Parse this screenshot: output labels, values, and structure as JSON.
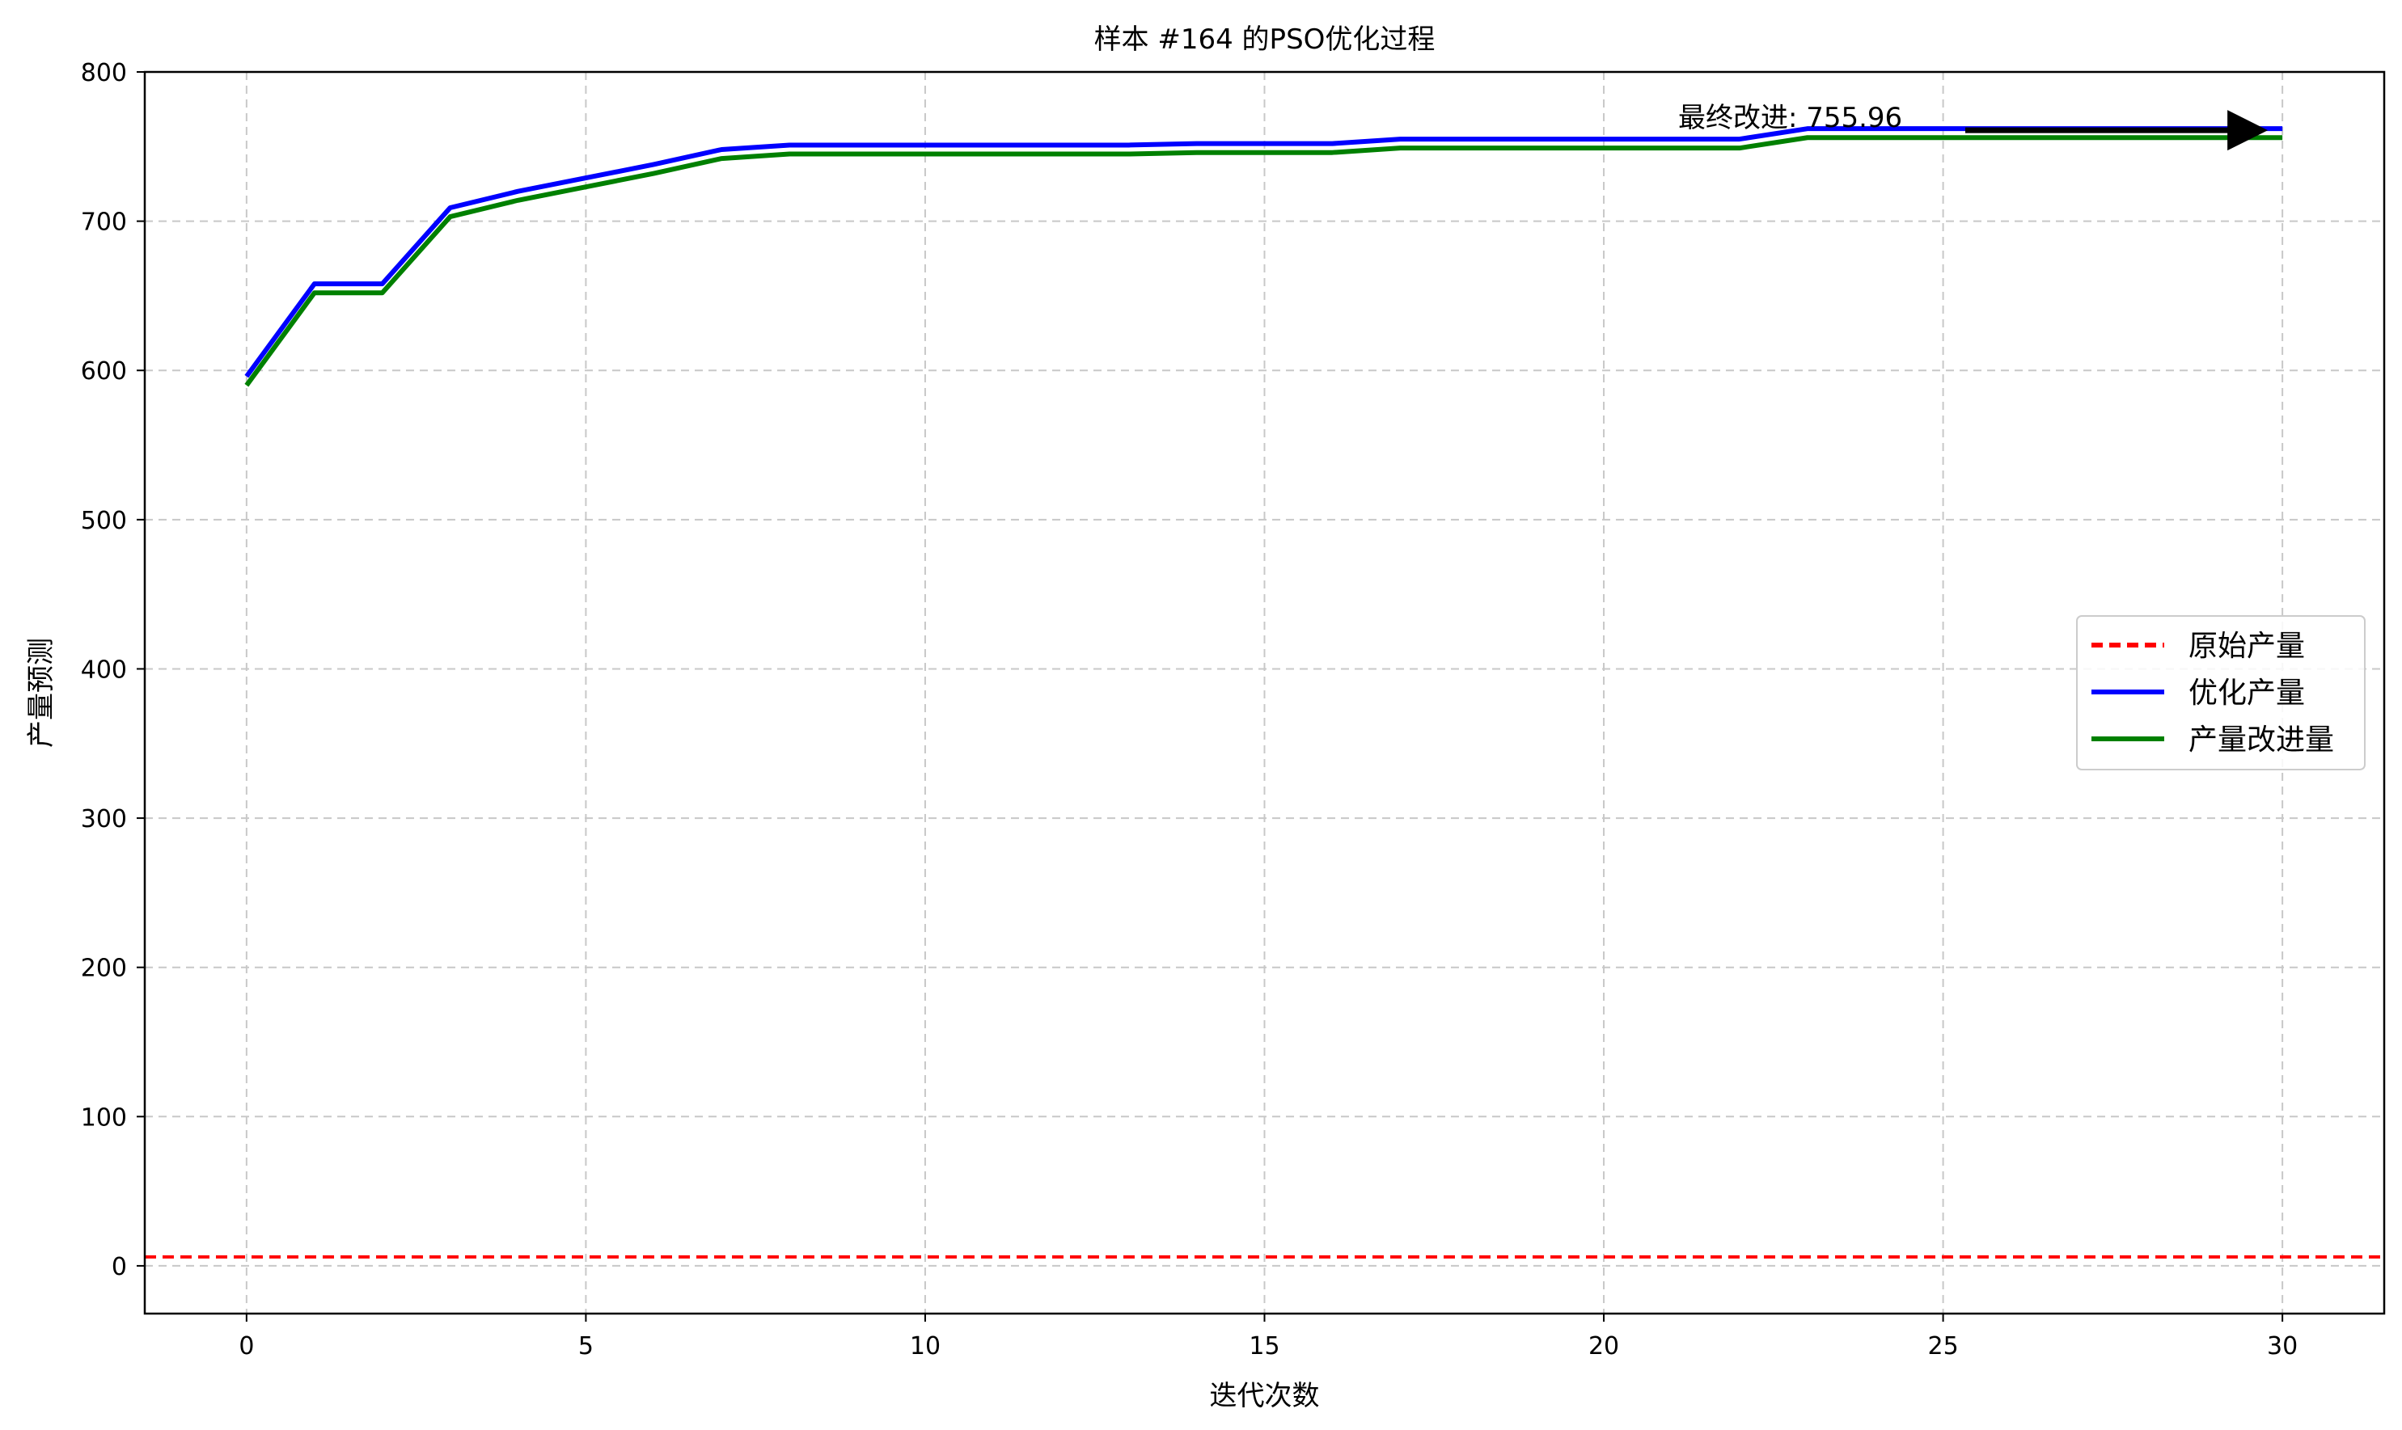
{
  "chart_data": {
    "type": "line",
    "title": "样本 #164 的PSO优化过程",
    "xlabel": "迭代次数",
    "ylabel": "产量预测",
    "xlim": [
      -1.5,
      31.5
    ],
    "ylim": [
      -32,
      800
    ],
    "xticks": [
      0,
      5,
      10,
      15,
      20,
      25,
      30
    ],
    "yticks": [
      0,
      100,
      200,
      300,
      400,
      500,
      600,
      700,
      800
    ],
    "grid": true,
    "legend_position": "center-right",
    "x": [
      0,
      1,
      2,
      3,
      4,
      5,
      6,
      7,
      8,
      9,
      10,
      11,
      12,
      13,
      14,
      15,
      16,
      17,
      18,
      19,
      20,
      21,
      22,
      23,
      24,
      25,
      26,
      27,
      28,
      29,
      30
    ],
    "hlines": [
      {
        "name": "原始产量",
        "value": 6.0,
        "color": "#ff0000",
        "style": "dashed"
      }
    ],
    "series": [
      {
        "name": "优化产量",
        "color": "#0000ff",
        "values": [
          596,
          658,
          658,
          709,
          720,
          729,
          738,
          748,
          751,
          751,
          751,
          751,
          751,
          751,
          752,
          752,
          752,
          755,
          755,
          755,
          755,
          755,
          755,
          762,
          762,
          762,
          762,
          762,
          762,
          762,
          762
        ]
      },
      {
        "name": "产量改进量",
        "color": "#008000",
        "values": [
          590,
          652,
          652,
          703,
          714,
          723,
          732,
          742,
          745,
          745,
          745,
          745,
          745,
          745,
          746,
          746,
          746,
          749,
          749,
          749,
          749,
          749,
          749,
          756,
          756,
          756,
          756,
          756,
          756,
          756,
          756
        ]
      }
    ],
    "annotation": {
      "text": "最终改进: 755.96",
      "target_x": 30,
      "target_y": 762,
      "text_x": 21,
      "text_y": 762
    }
  }
}
